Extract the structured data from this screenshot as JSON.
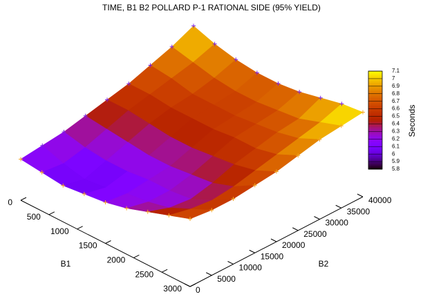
{
  "chart_data": {
    "type": "surface",
    "title": "TIME, B1 B2 POLLARD P-1 RATIONAL SIDE (95% YIELD)",
    "xlabel": "B1",
    "ylabel": "B2",
    "x": [
      0,
      375,
      750,
      1125,
      1500,
      1875,
      2250,
      2625,
      3000
    ],
    "y": [
      0,
      5000,
      10000,
      15000,
      20000,
      25000,
      30000,
      35000,
      40000
    ],
    "z": [
      [
        6.2,
        6.25,
        6.3,
        6.4,
        6.5,
        6.6,
        6.75,
        6.9,
        7.1
      ],
      [
        6.15,
        6.1,
        6.2,
        6.35,
        6.5,
        6.6,
        6.7,
        6.8,
        6.95
      ],
      [
        6.1,
        6.0,
        6.15,
        6.3,
        6.45,
        6.55,
        6.6,
        6.7,
        6.85
      ],
      [
        6.15,
        6.05,
        6.15,
        6.25,
        6.4,
        6.55,
        6.6,
        6.65,
        6.8
      ],
      [
        6.2,
        6.15,
        6.2,
        6.25,
        6.4,
        6.55,
        6.6,
        6.65,
        6.8
      ],
      [
        6.3,
        6.2,
        6.2,
        6.3,
        6.45,
        6.6,
        6.65,
        6.7,
        6.85
      ],
      [
        6.45,
        6.3,
        6.25,
        6.35,
        6.5,
        6.6,
        6.7,
        6.75,
        6.95
      ],
      [
        6.6,
        6.5,
        6.45,
        6.5,
        6.6,
        6.7,
        6.8,
        6.9,
        7.05
      ],
      [
        6.75,
        6.7,
        6.7,
        6.75,
        6.8,
        6.9,
        7.0,
        7.05,
        7.1
      ]
    ],
    "xlim": [
      0,
      3000
    ],
    "xticks": [
      0,
      500,
      1000,
      1500,
      2000,
      2500,
      3000
    ],
    "ylim": [
      0,
      40000
    ],
    "yticks": [
      0,
      5000,
      10000,
      15000,
      20000,
      25000,
      30000,
      35000,
      40000
    ],
    "palette": "gnuplot-default",
    "colorbar": {
      "label": "Seconds",
      "range": [
        5.8,
        7.1
      ],
      "ticks": [
        5.8,
        5.9,
        6,
        6.1,
        6.2,
        6.3,
        6.4,
        6.5,
        6.6,
        6.7,
        6.8,
        6.9,
        7,
        7.1
      ]
    }
  }
}
